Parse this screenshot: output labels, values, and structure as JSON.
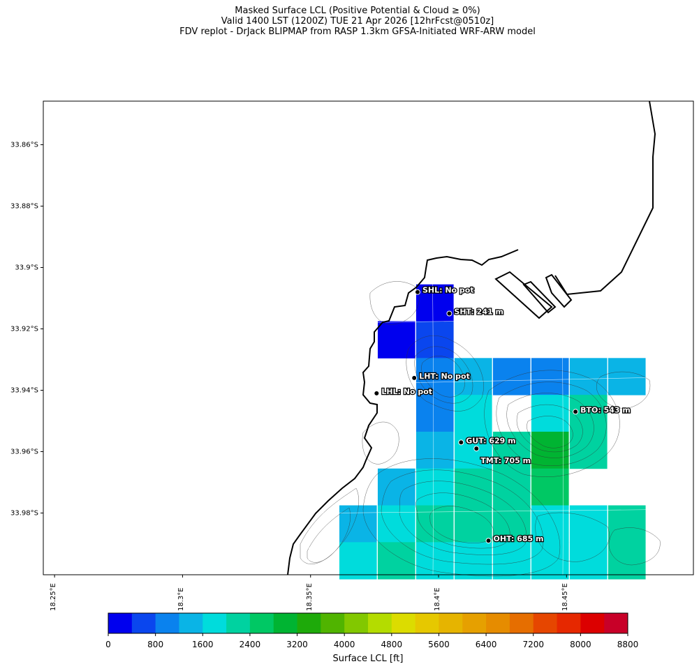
{
  "title": {
    "line1": "Masked Surface LCL (Positive Potential & Cloud ≥ 0%)",
    "line2": "Valid 1400 LST (1200Z) TUE 21 Apr 2026 [12hrFcst@0510z]",
    "line3": "FDV replot - DrJack BLIPMAP from RASP 1.3km GFSA-Initiated WRF-ARW model"
  },
  "axes": {
    "lat_ticks": [
      "33.86°S",
      "33.88°S",
      "33.9°S",
      "33.92°S",
      "33.94°S",
      "33.96°S",
      "33.98°S"
    ],
    "lon_ticks": [
      "18.25°E",
      "18.3°E",
      "18.35°E",
      "18.4°E",
      "18.45°E"
    ]
  },
  "colorbar": {
    "label": "Surface LCL [ft]",
    "tick_labels": [
      "0",
      "800",
      "1600",
      "2400",
      "3200",
      "4000",
      "4800",
      "5600",
      "6400",
      "7200",
      "8000",
      "8800"
    ],
    "colors": [
      "#0000ee",
      "#0a46ee",
      "#0a82ee",
      "#0ab4e6",
      "#00dcdc",
      "#00d2a0",
      "#00c864",
      "#00b432",
      "#1eaa0a",
      "#50b400",
      "#82c800",
      "#b4dc00",
      "#dcdc00",
      "#e6c800",
      "#e6b400",
      "#e6a000",
      "#e68c00",
      "#e66e00",
      "#e64600",
      "#e62800",
      "#dc0000",
      "#c80028"
    ]
  },
  "chart_data": {
    "type": "heatmap",
    "title": "Masked Surface LCL (Positive Potential & Cloud ≥ 0%)",
    "colorbar_label": "Surface LCL [ft]",
    "colorbar_range": [
      0,
      8800
    ],
    "colorbar_step": 400,
    "x_axis": "longitude (°E)",
    "y_axis": "latitude (°S)",
    "grid_lines": true,
    "cells": [
      {
        "lon": 18.3985,
        "lat": 33.9115,
        "lcl_ft": 200
      },
      {
        "lon": 18.3985,
        "lat": 33.9235,
        "lcl_ft": 600
      },
      {
        "lon": 18.3835,
        "lat": 33.9235,
        "lcl_ft": 200
      },
      {
        "lon": 18.3985,
        "lat": 33.9355,
        "lcl_ft": 800
      },
      {
        "lon": 18.4135,
        "lat": 33.9355,
        "lcl_ft": 1400
      },
      {
        "lon": 18.4285,
        "lat": 33.9355,
        "lcl_ft": 800
      },
      {
        "lon": 18.4435,
        "lat": 33.9355,
        "lcl_ft": 800
      },
      {
        "lon": 18.4585,
        "lat": 33.9355,
        "lcl_ft": 1400
      },
      {
        "lon": 18.4735,
        "lat": 33.9355,
        "lcl_ft": 1400
      },
      {
        "lon": 18.3985,
        "lat": 33.9475,
        "lcl_ft": 800
      },
      {
        "lon": 18.4135,
        "lat": 33.9475,
        "lcl_ft": 1800
      },
      {
        "lon": 18.4435,
        "lat": 33.9475,
        "lcl_ft": 1800
      },
      {
        "lon": 18.4585,
        "lat": 33.9475,
        "lcl_ft": 2000
      },
      {
        "lon": 18.3985,
        "lat": 33.9595,
        "lcl_ft": 1400
      },
      {
        "lon": 18.4135,
        "lat": 33.9595,
        "lcl_ft": 1800
      },
      {
        "lon": 18.4285,
        "lat": 33.9595,
        "lcl_ft": 2000
      },
      {
        "lon": 18.4435,
        "lat": 33.9595,
        "lcl_ft": 2800
      },
      {
        "lon": 18.4585,
        "lat": 33.9595,
        "lcl_ft": 2200
      },
      {
        "lon": 18.3835,
        "lat": 33.9715,
        "lcl_ft": 1400
      },
      {
        "lon": 18.3985,
        "lat": 33.9715,
        "lcl_ft": 1800
      },
      {
        "lon": 18.4135,
        "lat": 33.9715,
        "lcl_ft": 2000
      },
      {
        "lon": 18.4285,
        "lat": 33.9715,
        "lcl_ft": 2000
      },
      {
        "lon": 18.4435,
        "lat": 33.9715,
        "lcl_ft": 2400
      },
      {
        "lon": 18.3685,
        "lat": 33.9835,
        "lcl_ft": 1400
      },
      {
        "lon": 18.3835,
        "lat": 33.9835,
        "lcl_ft": 1800
      },
      {
        "lon": 18.3985,
        "lat": 33.9835,
        "lcl_ft": 2000
      },
      {
        "lon": 18.4135,
        "lat": 33.9835,
        "lcl_ft": 2000
      },
      {
        "lon": 18.4285,
        "lat": 33.9835,
        "lcl_ft": 2000
      },
      {
        "lon": 18.4435,
        "lat": 33.9835,
        "lcl_ft": 1800
      },
      {
        "lon": 18.4585,
        "lat": 33.9835,
        "lcl_ft": 1800
      },
      {
        "lon": 18.4735,
        "lat": 33.9835,
        "lcl_ft": 2000
      },
      {
        "lon": 18.3685,
        "lat": 33.9955,
        "lcl_ft": 1800
      },
      {
        "lon": 18.3835,
        "lat": 33.9955,
        "lcl_ft": 2000
      },
      {
        "lon": 18.3985,
        "lat": 33.9955,
        "lcl_ft": 1800
      },
      {
        "lon": 18.4135,
        "lat": 33.9955,
        "lcl_ft": 1800
      },
      {
        "lon": 18.4285,
        "lat": 33.9955,
        "lcl_ft": 1800
      },
      {
        "lon": 18.4435,
        "lat": 33.9955,
        "lcl_ft": 1800
      },
      {
        "lon": 18.4585,
        "lat": 33.9955,
        "lcl_ft": 1800
      },
      {
        "lon": 18.4735,
        "lat": 33.9955,
        "lcl_ft": 2000
      }
    ],
    "stations": [
      {
        "id": "SHL",
        "label": "SHL: No pot",
        "lon": 18.3918,
        "lat": 33.908
      },
      {
        "id": "SHT",
        "label": "SHT: 241 m",
        "lon": 18.4042,
        "lat": 33.915
      },
      {
        "id": "LHT",
        "label": "LHT: No pot",
        "lon": 18.3905,
        "lat": 33.936
      },
      {
        "id": "LHL",
        "label": "LHL: No pot",
        "lon": 18.3758,
        "lat": 33.941
      },
      {
        "id": "BTO",
        "label": "BTO: 543 m",
        "lon": 18.4535,
        "lat": 33.947
      },
      {
        "id": "GUT",
        "label": "GUT: 629 m",
        "lon": 18.4088,
        "lat": 33.957
      },
      {
        "id": "TMT",
        "label": "TMT: 705 m",
        "lon": 18.4148,
        "lat": 33.959
      },
      {
        "id": "OHT",
        "label": "OHT: 685 m",
        "lon": 18.4195,
        "lat": 33.989
      }
    ]
  }
}
